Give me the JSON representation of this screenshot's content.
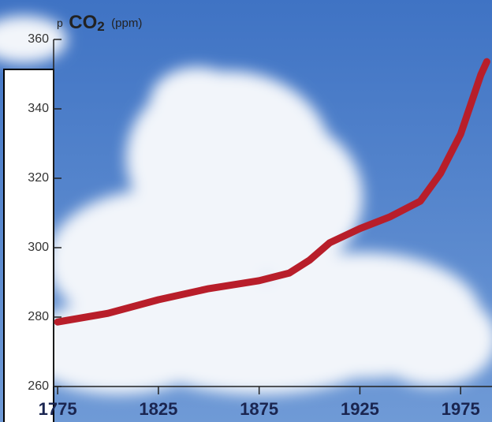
{
  "chart_data": {
    "type": "line",
    "y_label": {
      "prefix": "p",
      "main": "CO",
      "sub": "2",
      "unit": "(ppm)"
    },
    "x": [
      1775,
      1800,
      1825,
      1850,
      1875,
      1890,
      1900,
      1910,
      1925,
      1940,
      1955,
      1965,
      1975,
      1985,
      1988
    ],
    "series": [
      {
        "name": "pCO2",
        "color": "#b81e2a",
        "values": [
          278.6,
          281.1,
          285,
          288.2,
          290.5,
          292.7,
          296.4,
          301.4,
          305.5,
          308.9,
          313.4,
          321.4,
          332.7,
          349.8,
          353.6
        ]
      }
    ],
    "xlim": [
      1773,
      1989
    ],
    "ylim": [
      260,
      360
    ],
    "xticks": [
      1775,
      1825,
      1875,
      1925,
      1975
    ],
    "yticks": [
      260,
      280,
      300,
      320,
      340,
      360
    ]
  }
}
